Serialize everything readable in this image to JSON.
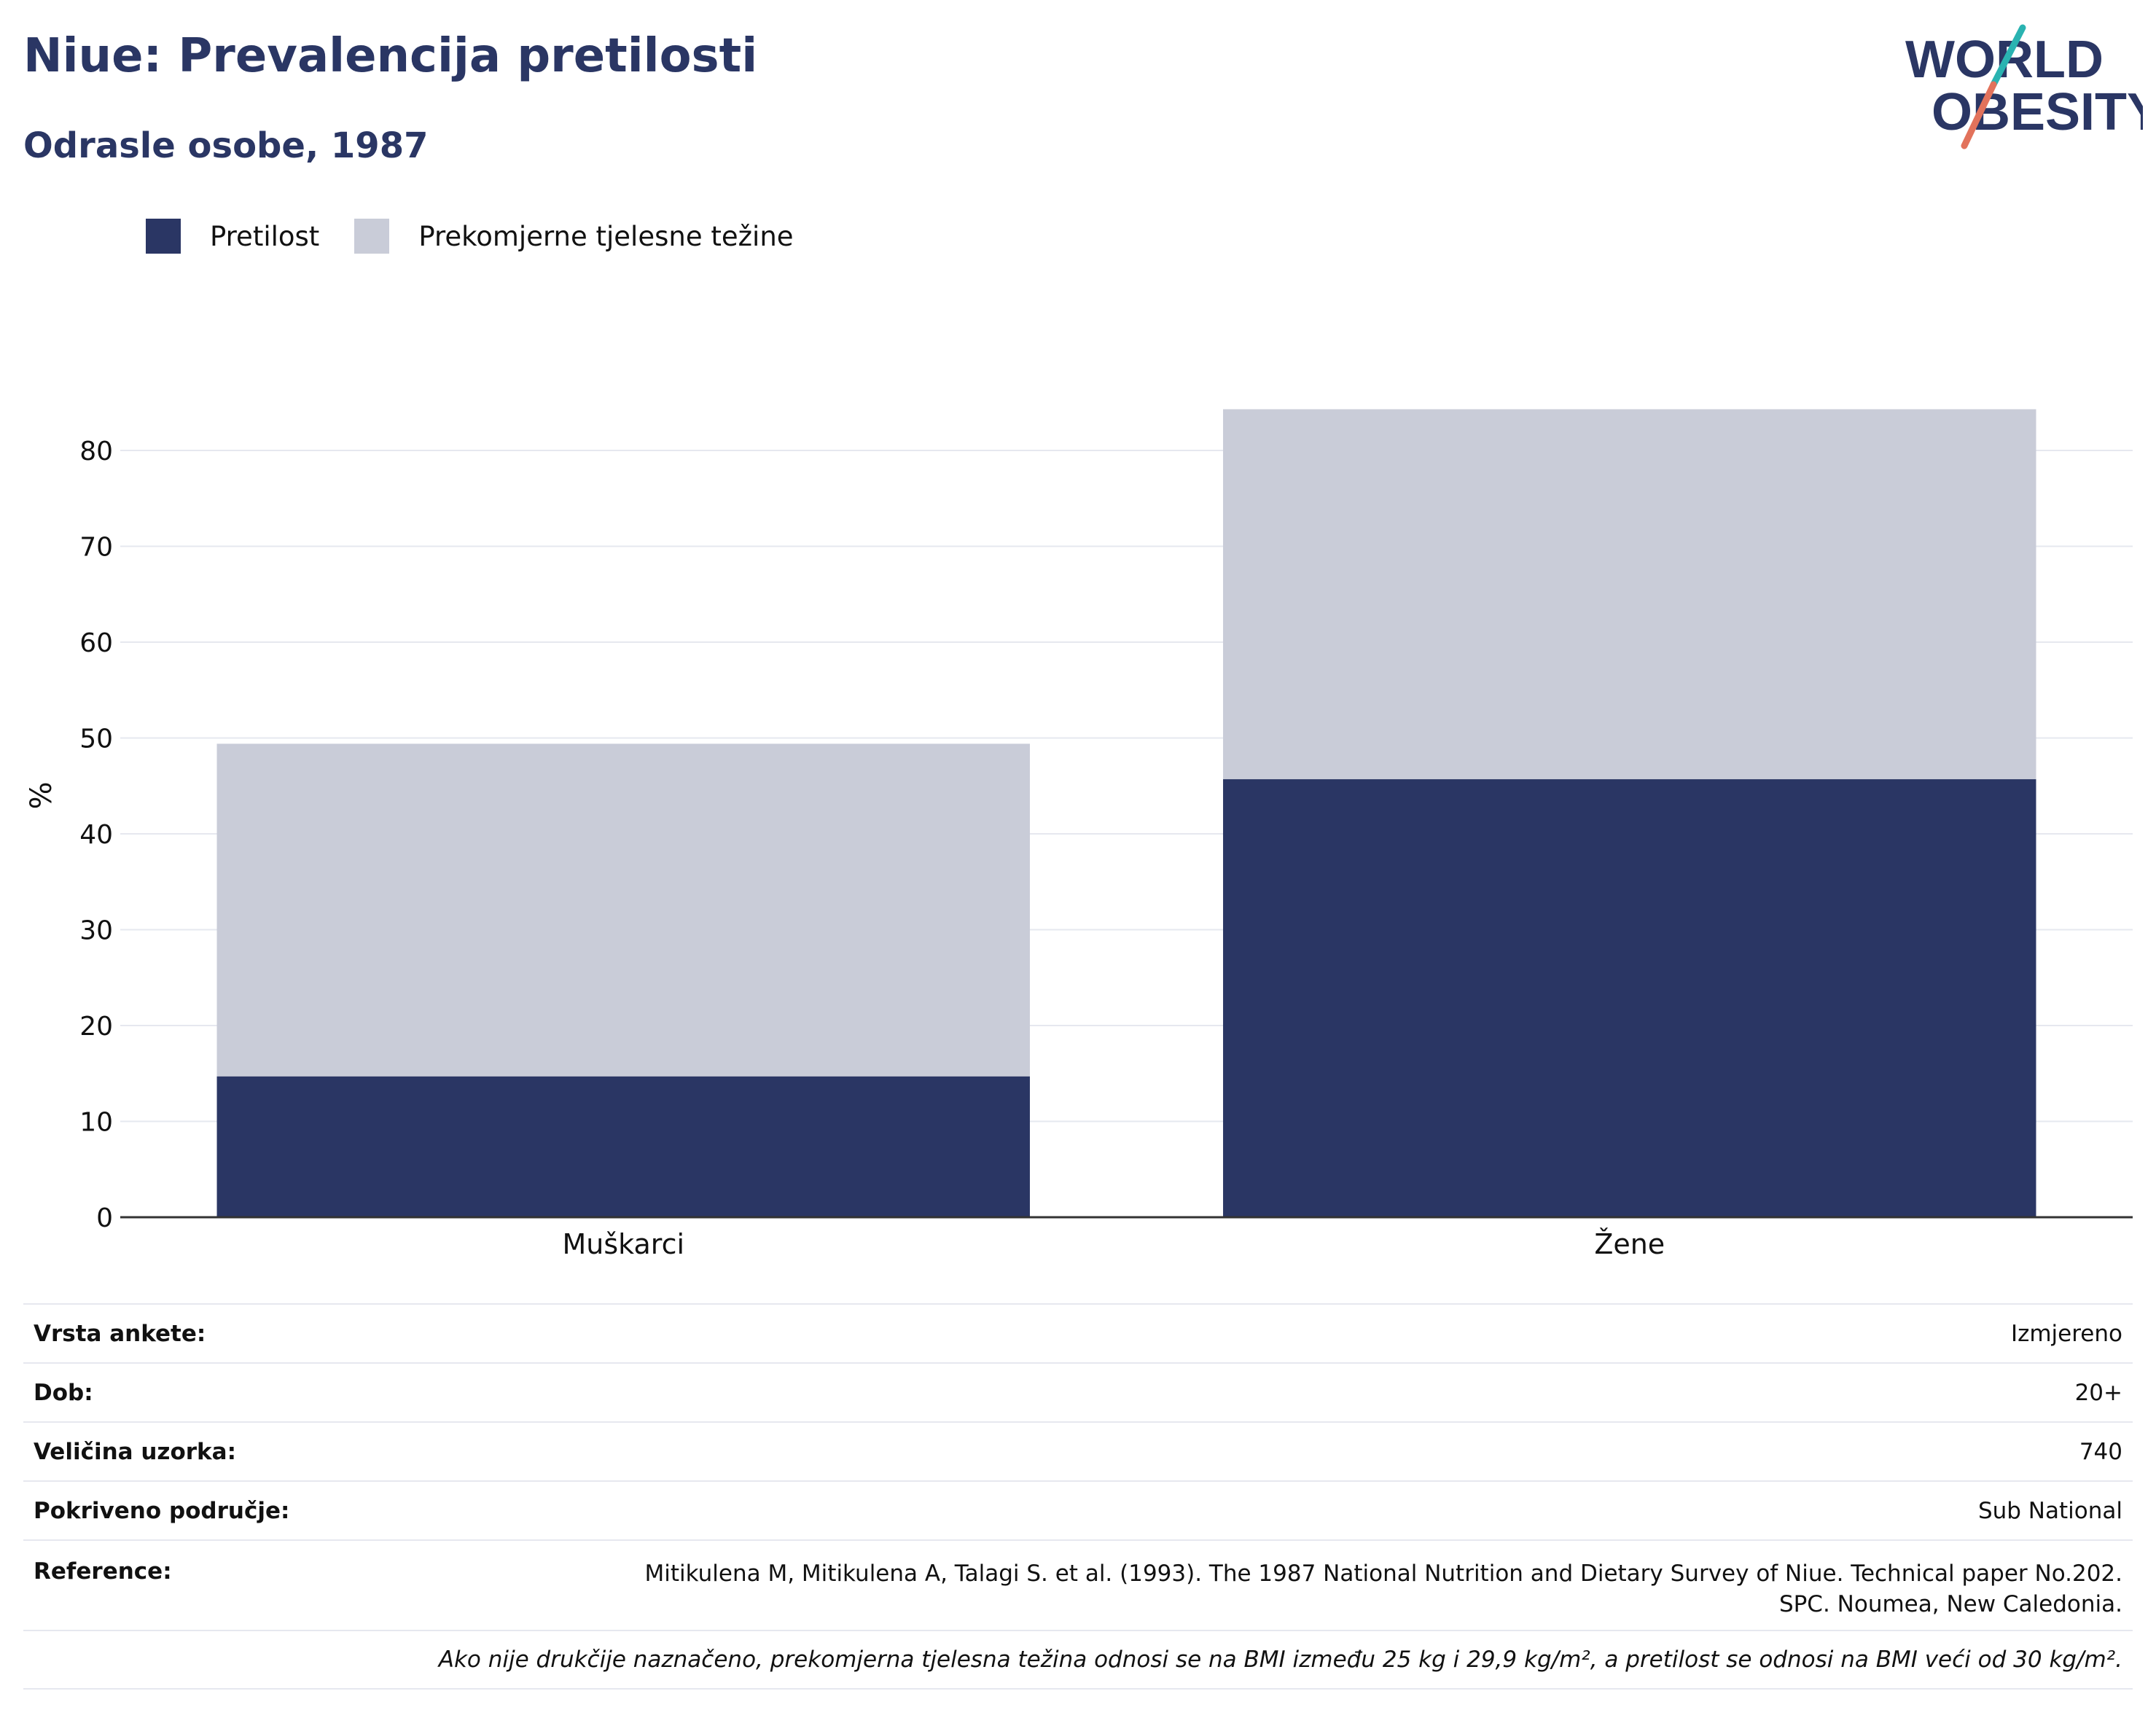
{
  "header": {
    "title": "Niue: Prevalencija pretilosti",
    "subtitle": "Odrasle osobe, 1987"
  },
  "logo": {
    "line1": "WORLD",
    "line2": "OBESITY"
  },
  "colors": {
    "obesity": "#2a3664",
    "overweight": "#c9ccd8",
    "grid": "#e6e8ef",
    "axis": "#333333"
  },
  "chart_data": {
    "type": "bar",
    "stacked": true,
    "categories": [
      "Muškarci",
      "Žene"
    ],
    "series": [
      {
        "name": "Pretilost",
        "values": [
          14.7,
          45.7
        ]
      },
      {
        "name": "Prekomjerne tjelesne težine",
        "values": [
          34.7,
          38.6
        ]
      }
    ],
    "ylabel": "%",
    "xlabel": "",
    "ylim": [
      0,
      90
    ],
    "yticks": [
      0,
      10,
      20,
      30,
      40,
      50,
      60,
      70,
      80
    ],
    "grid": true,
    "legend": "top-left"
  },
  "info": {
    "rows": [
      {
        "label": "Vrsta ankete:",
        "value": "Izmjereno"
      },
      {
        "label": "Dob:",
        "value": "20+"
      },
      {
        "label": "Veličina uzorka:",
        "value": "740"
      },
      {
        "label": "Pokriveno područje:",
        "value": "Sub National"
      }
    ],
    "reference": {
      "label": "Reference:",
      "line1": "Mitikulena M, Mitikulena A, Talagi S. et al. (1993). The 1987 National Nutrition and Dietary Survey of Niue. Technical paper No.202.",
      "line2": "SPC. Noumea, New Caledonia."
    },
    "note": "Ako nije drukčije naznačeno, prekomjerna tjelesna težina odnosi se na BMI između 25 kg i 29,9 kg/m², a pretilost se odnosi na BMI veći od 30 kg/m²."
  }
}
